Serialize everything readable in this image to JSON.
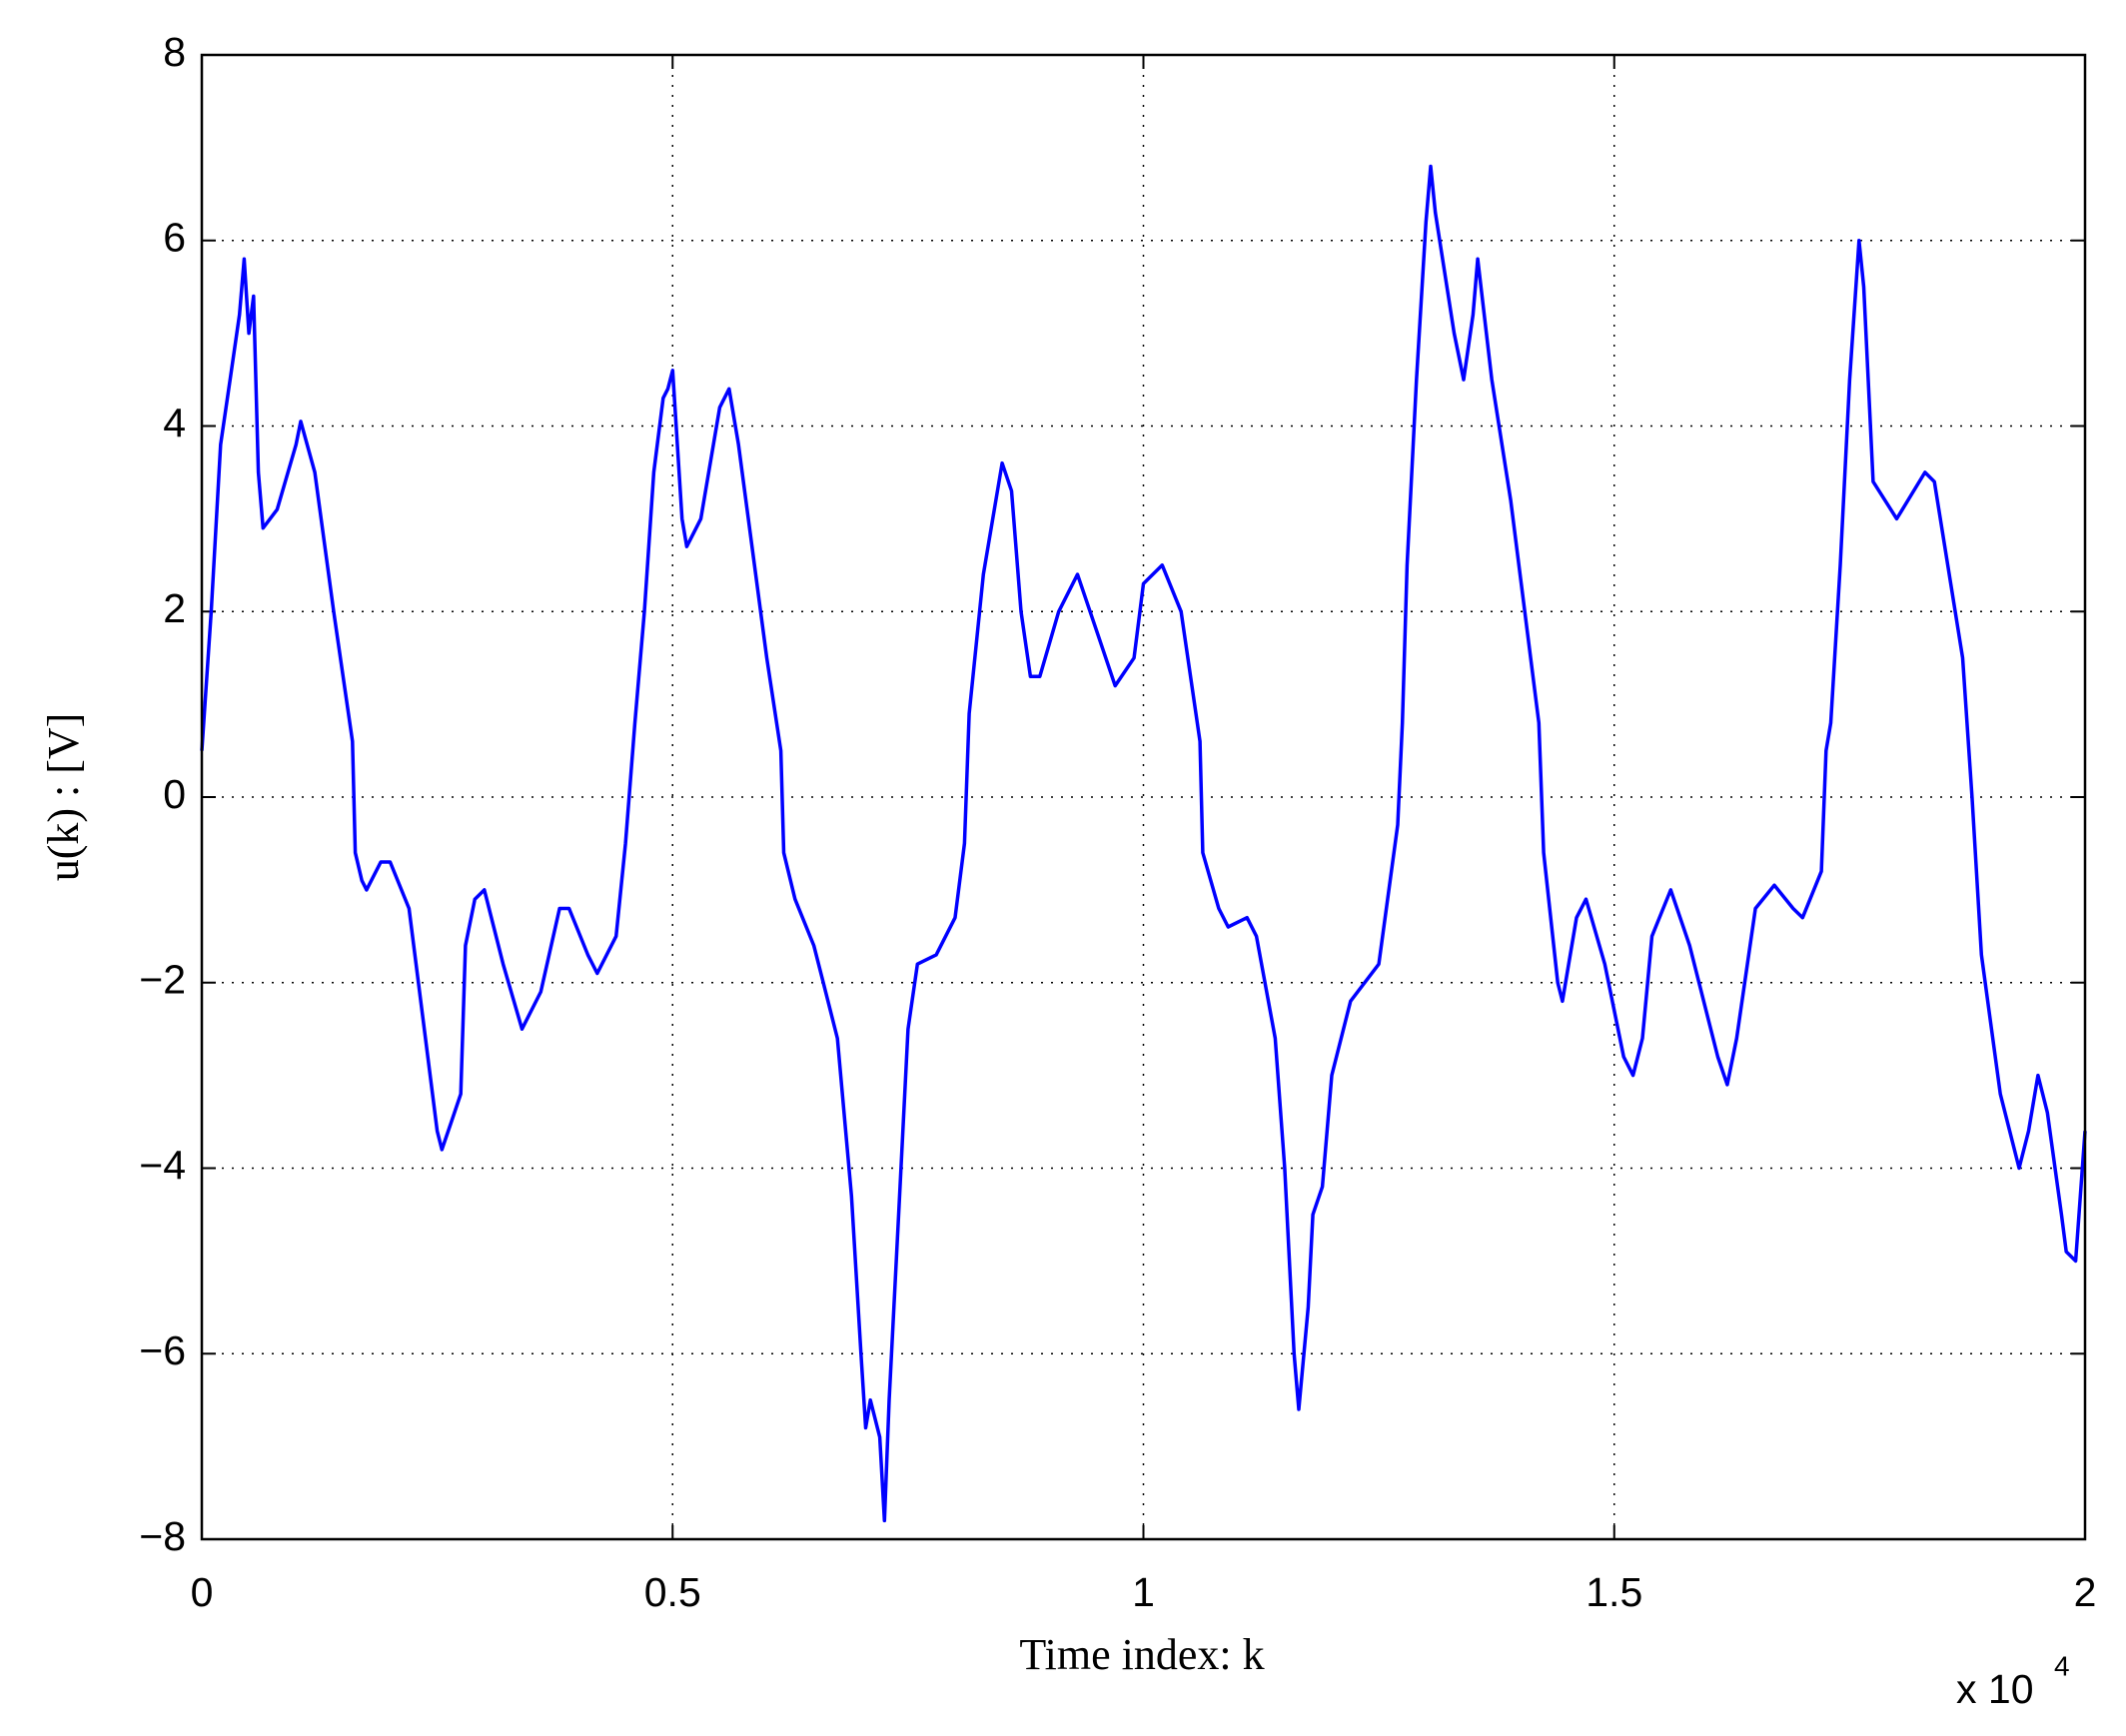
{
  "chart_data": {
    "type": "line",
    "xlabel": "Time index: k",
    "ylabel": "u(k) : [V]",
    "x_scale_label": {
      "base": "x 10",
      "exponent": "4"
    },
    "xlim": [
      0,
      2
    ],
    "xticks": [
      0,
      0.5,
      1,
      1.5,
      2
    ],
    "ylim": [
      -8,
      8
    ],
    "yticks": [
      {
        "value": -8,
        "label": "−8"
      },
      {
        "value": -6,
        "label": "−6"
      },
      {
        "value": -4,
        "label": "−4"
      },
      {
        "value": -2,
        "label": "−2"
      },
      0,
      2,
      4,
      6,
      8
    ],
    "grid": true,
    "series": [
      {
        "color": "#0000ff",
        "x": [
          0,
          0.01,
          0.02,
          0.03,
          0.04,
          0.045,
          0.05,
          0.055,
          0.06,
          0.065,
          0.08,
          0.1,
          0.105,
          0.12,
          0.14,
          0.16,
          0.163,
          0.17,
          0.175,
          0.19,
          0.2,
          0.22,
          0.24,
          0.25,
          0.255,
          0.265,
          0.275,
          0.28,
          0.29,
          0.3,
          0.32,
          0.34,
          0.36,
          0.38,
          0.39,
          0.41,
          0.42,
          0.44,
          0.45,
          0.46,
          0.47,
          0.48,
          0.49,
          0.495,
          0.5,
          0.51,
          0.515,
          0.53,
          0.55,
          0.56,
          0.57,
          0.6,
          0.615,
          0.618,
          0.63,
          0.65,
          0.66,
          0.675,
          0.69,
          0.7,
          0.705,
          0.71,
          0.72,
          0.725,
          0.73,
          0.74,
          0.75,
          0.76,
          0.78,
          0.8,
          0.81,
          0.815,
          0.83,
          0.845,
          0.85,
          0.86,
          0.87,
          0.88,
          0.89,
          0.91,
          0.93,
          0.95,
          0.97,
          0.99,
          1.0,
          1.02,
          1.04,
          1.06,
          1.063,
          1.08,
          1.09,
          1.11,
          1.12,
          1.14,
          1.15,
          1.16,
          1.165,
          1.175,
          1.18,
          1.19,
          1.2,
          1.22,
          1.25,
          1.27,
          1.275,
          1.28,
          1.29,
          1.3,
          1.305,
          1.31,
          1.33,
          1.34,
          1.35,
          1.355,
          1.37,
          1.39,
          1.42,
          1.425,
          1.44,
          1.445,
          1.46,
          1.47,
          1.49,
          1.51,
          1.52,
          1.53,
          1.54,
          1.56,
          1.58,
          1.61,
          1.62,
          1.63,
          1.65,
          1.67,
          1.69,
          1.7,
          1.72,
          1.725,
          1.73,
          1.74,
          1.75,
          1.76,
          1.765,
          1.775,
          1.8,
          1.83,
          1.84,
          1.87,
          1.88,
          1.89,
          1.91,
          1.92,
          1.93,
          1.94,
          1.95,
          1.96,
          1.975,
          1.98,
          1.99,
          2.0
        ],
        "values": [
          0.5,
          2,
          3.8,
          4.5,
          5.2,
          5.8,
          5.0,
          5.4,
          3.5,
          2.9,
          3.1,
          3.8,
          4.05,
          3.5,
          2.0,
          0.6,
          -0.6,
          -0.9,
          -1.0,
          -0.7,
          -0.7,
          -1.2,
          -2.8,
          -3.6,
          -3.8,
          -3.5,
          -3.2,
          -1.6,
          -1.1,
          -1.0,
          -1.8,
          -2.5,
          -2.1,
          -1.2,
          -1.2,
          -1.7,
          -1.9,
          -1.5,
          -0.5,
          0.8,
          2.0,
          3.5,
          4.3,
          4.4,
          4.6,
          3.0,
          2.7,
          3.0,
          4.2,
          4.4,
          3.8,
          1.5,
          0.5,
          -0.6,
          -1.1,
          -1.6,
          -2.0,
          -2.6,
          -4.3,
          -6.0,
          -6.8,
          -6.5,
          -6.9,
          -7.8,
          -6.5,
          -4.5,
          -2.5,
          -1.8,
          -1.7,
          -1.3,
          -0.5,
          0.9,
          2.4,
          3.3,
          3.6,
          3.3,
          2.0,
          1.3,
          1.3,
          2.0,
          2.4,
          1.8,
          1.2,
          1.5,
          2.3,
          2.5,
          2.0,
          0.6,
          -0.6,
          -1.2,
          -1.4,
          -1.3,
          -1.5,
          -2.6,
          -4.0,
          -6.0,
          -6.6,
          -5.5,
          -4.5,
          -4.2,
          -3.0,
          -2.2,
          -1.8,
          -0.3,
          0.8,
          2.5,
          4.5,
          6.2,
          6.8,
          6.3,
          5.0,
          4.5,
          5.2,
          5.8,
          4.5,
          3.2,
          0.8,
          -0.6,
          -2.0,
          -2.2,
          -1.3,
          -1.1,
          -1.8,
          -2.8,
          -3.0,
          -2.6,
          -1.5,
          -1.0,
          -1.6,
          -2.8,
          -3.1,
          -2.6,
          -1.2,
          -0.95,
          -1.2,
          -1.3,
          -0.8,
          0.5,
          0.8,
          2.5,
          4.5,
          6.0,
          5.5,
          3.4,
          3.0,
          3.5,
          3.4,
          1.5,
          0.0,
          -1.7,
          -3.2,
          -3.6,
          -4.0,
          -3.6,
          -3.0,
          -3.4,
          -4.5,
          -4.9,
          -5.0,
          -3.6
        ]
      }
    ]
  }
}
